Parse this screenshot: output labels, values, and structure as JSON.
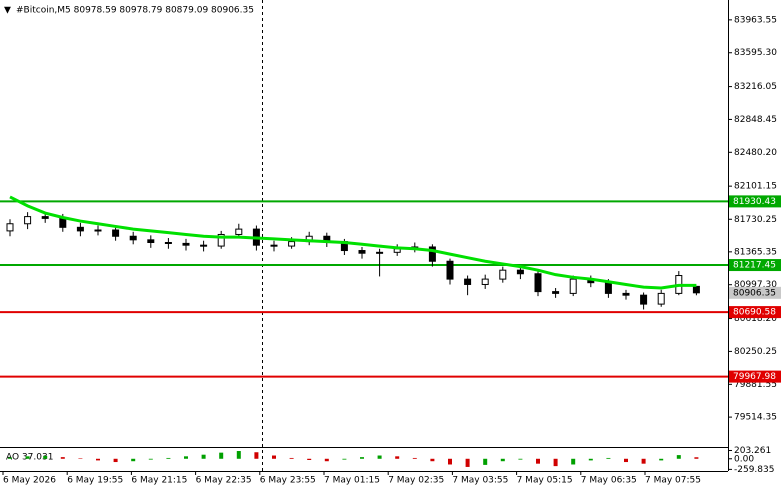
{
  "chart_data": {
    "type": "candlestick",
    "title": "#Bitcoin,M5  80978.59 80978.79 80879.09 80906.35",
    "open": [
      81600,
      81680,
      81760,
      81740,
      81640,
      81600,
      81610,
      81540,
      81500,
      81470,
      81460,
      81440,
      81430,
      81560,
      81620,
      81440,
      81430,
      81480,
      81540,
      81480,
      81380,
      81350,
      81360,
      81400,
      81420,
      81260,
      81060,
      81000,
      81060,
      81160,
      81120,
      80920,
      80900,
      81060,
      81020,
      80900,
      80880,
      80780,
      80900,
      80978.59
    ],
    "high": [
      81730,
      81810,
      81800,
      81790,
      81690,
      81660,
      81650,
      81590,
      81550,
      81520,
      81510,
      81490,
      81600,
      81680,
      81660,
      81490,
      81530,
      81590,
      81580,
      81510,
      81420,
      81400,
      81450,
      81470,
      81450,
      81290,
      81100,
      81110,
      81200,
      81200,
      81150,
      80960,
      81100,
      81100,
      81060,
      80940,
      80910,
      80940,
      81150,
      80978.79
    ],
    "low": [
      81540,
      81620,
      81690,
      81590,
      81540,
      81550,
      81490,
      81450,
      81410,
      81400,
      81380,
      81370,
      81400,
      81520,
      81380,
      81370,
      81400,
      81440,
      81420,
      81330,
      81290,
      81090,
      81320,
      81360,
      81200,
      81000,
      80880,
      80950,
      81020,
      81060,
      80870,
      80850,
      80870,
      80970,
      80850,
      80830,
      80720,
      80750,
      80880,
      80879.09
    ],
    "close": [
      81680,
      81760,
      81740,
      81640,
      81600,
      81610,
      81540,
      81500,
      81470,
      81460,
      81440,
      81430,
      81560,
      81620,
      81440,
      81430,
      81480,
      81540,
      81480,
      81380,
      81350,
      81360,
      81400,
      81420,
      81260,
      81060,
      81000,
      81060,
      81160,
      81120,
      80920,
      80900,
      81060,
      81020,
      80900,
      80880,
      80780,
      80900,
      81100,
      80906.35
    ],
    "up_color": "#ffffff",
    "down_color": "#000000",
    "ma": {
      "color": "#00e000",
      "values": [
        81980,
        81880,
        81800,
        81750,
        81710,
        81680,
        81650,
        81620,
        81600,
        81580,
        81560,
        81540,
        81530,
        81530,
        81520,
        81510,
        81500,
        81490,
        81480,
        81470,
        81450,
        81430,
        81410,
        81400,
        81380,
        81340,
        81300,
        81260,
        81230,
        81200,
        81160,
        81110,
        81080,
        81060,
        81030,
        81000,
        80970,
        80960,
        80990,
        80990
      ]
    },
    "levels": [
      {
        "value": 81930.43,
        "color": "#00a800"
      },
      {
        "value": 81217.45,
        "color": "#00a800"
      },
      {
        "value": 80690.58,
        "color": "#e00000"
      },
      {
        "value": 79967.98,
        "color": "#e00000"
      }
    ],
    "ylim": [
      79370,
      84130
    ],
    "yticks": [
      83963.55,
      {
        "value": 83595.3,
        "label": "83595.30"
      },
      83216.05,
      82848.45,
      {
        "value": 82480.2,
        "label": "82480.20"
      },
      82101.15,
      81730.25,
      81365.35,
      {
        "value": 80997.3,
        "label": "80997.30"
      },
      {
        "value": 80618.2,
        "label": "80618.20"
      },
      80250.25,
      79881.55,
      79514.35
    ],
    "x_labels": [
      "6 May 2026",
      "6 May 19:55",
      "6 May 21:15",
      "6 May 22:35",
      "6 May 23:55",
      "7 May 01:15",
      "7 May 02:35",
      "7 May 03:55",
      "7 May 05:15",
      "7 May 06:35",
      "7 May 07:55"
    ],
    "ao": {
      "label": "AO 37.031",
      "up_color": "#00a000",
      "down_color": "#d00000",
      "values": [
        30,
        60,
        70,
        40,
        10,
        -40,
        -80,
        -60,
        -20,
        20,
        60,
        100,
        150,
        190,
        160,
        80,
        20,
        -30,
        -60,
        -20,
        40,
        80,
        60,
        20,
        -60,
        -140,
        -200,
        -150,
        -60,
        -20,
        -120,
        -180,
        -140,
        -40,
        20,
        -80,
        -120,
        -40,
        90,
        37.031
      ],
      "ylim": [
        -275,
        215
      ],
      "yticks": [
        203.261,
        {
          "value": 0,
          "label": "0.00"
        },
        -259.835
      ]
    }
  }
}
